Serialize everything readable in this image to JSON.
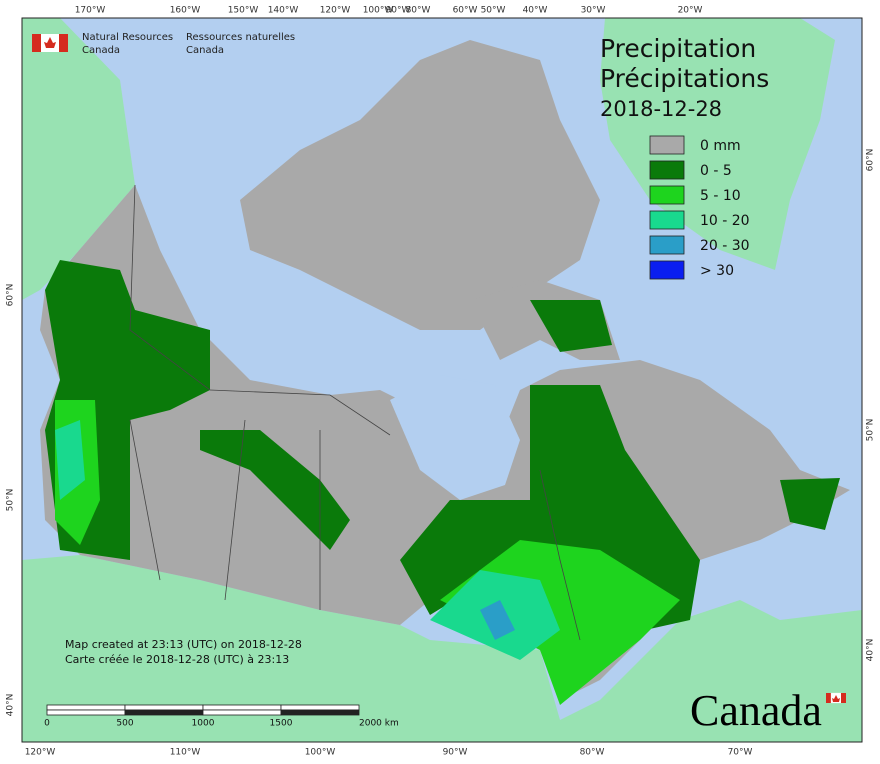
{
  "header": {
    "dept_en": "Natural Resources",
    "country_en": "Canada",
    "dept_fr": "Ressources naturelles",
    "country_fr": "Canada"
  },
  "title": {
    "line1": "Precipitation",
    "line2": "Précipitations",
    "date": "2018-12-28"
  },
  "legend": [
    {
      "label": "0 mm",
      "color": "#a9a9a9"
    },
    {
      "label": "0 - 5",
      "color": "#0a7a0a"
    },
    {
      "label": "5 - 10",
      "color": "#1ed41e"
    },
    {
      "label": "10 - 20",
      "color": "#19d98e"
    },
    {
      "label": "20 - 30",
      "color": "#2a9ec8"
    },
    {
      "label": "> 30",
      "color": "#0a1ef0"
    }
  ],
  "graticule": {
    "top": [
      "170°W",
      "160°W",
      "150°W",
      "140°W",
      "120°W",
      "100°W",
      "90°W",
      "80°W",
      "60°W",
      "50°W",
      "40°W",
      "30°W",
      "20°W"
    ],
    "bottom": [
      "120°W",
      "110°W",
      "100°W",
      "90°W",
      "80°W",
      "70°W"
    ],
    "left": [
      "60°N",
      "50°N",
      "40°N"
    ],
    "right": [
      "60°N",
      "50°N",
      "40°N"
    ]
  },
  "footer": {
    "created_en": "Map created at 23:13 (UTC) on 2018-12-28",
    "created_fr": "Carte créée le 2018-12-28 (UTC) à 23:13"
  },
  "scale_bar": {
    "labels": [
      "0",
      "500",
      "1000",
      "1500",
      "2000 km"
    ]
  },
  "wordmark": "Canada"
}
